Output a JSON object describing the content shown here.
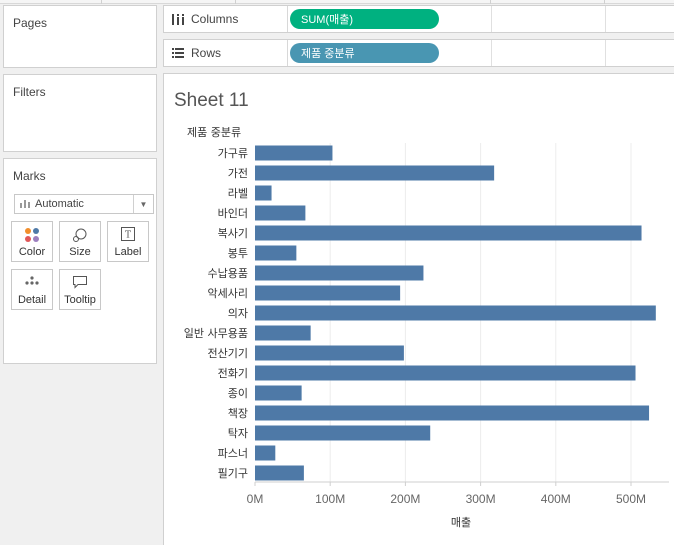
{
  "panels": {
    "pages_title": "Pages",
    "filters_title": "Filters",
    "marks_title": "Marks"
  },
  "marks": {
    "mark_type": "Automatic",
    "buttons": {
      "color": "Color",
      "size": "Size",
      "label": "Label",
      "detail": "Detail",
      "tooltip": "Tooltip"
    }
  },
  "shelves": {
    "columns_label": "Columns",
    "columns_pill": "SUM(매출)",
    "rows_label": "Rows",
    "rows_pill": "제품 중분류"
  },
  "sheet": {
    "title": "Sheet 11"
  },
  "colors": {
    "bar": "#4e79a7",
    "columns_pill": "#00b180",
    "rows_pill": "#4996b2"
  },
  "chart_data": {
    "type": "bar",
    "orientation": "horizontal",
    "row_header": "제품 중분류",
    "xlabel": "매출",
    "ylabel": "",
    "xlim": [
      0,
      550000000
    ],
    "x_ticks": [
      0,
      100000000,
      200000000,
      300000000,
      400000000,
      500000000
    ],
    "x_tick_labels": [
      "0M",
      "100M",
      "200M",
      "300M",
      "400M",
      "500M"
    ],
    "grid": true,
    "categories": [
      "가구류",
      "가전",
      "라벨",
      "바인더",
      "복사기",
      "봉투",
      "수납용품",
      "악세사리",
      "의자",
      "일반 사무용품",
      "전산기기",
      "전화기",
      "종이",
      "책장",
      "탁자",
      "파스너",
      "필기구"
    ],
    "series": [
      {
        "values": [
          103000000,
          318000000,
          22000000,
          67000000,
          514000000,
          55000000,
          224000000,
          193000000,
          533000000,
          74000000,
          198000000,
          506000000,
          62000000,
          524000000,
          233000000,
          27000000,
          65000000
        ]
      }
    ]
  }
}
